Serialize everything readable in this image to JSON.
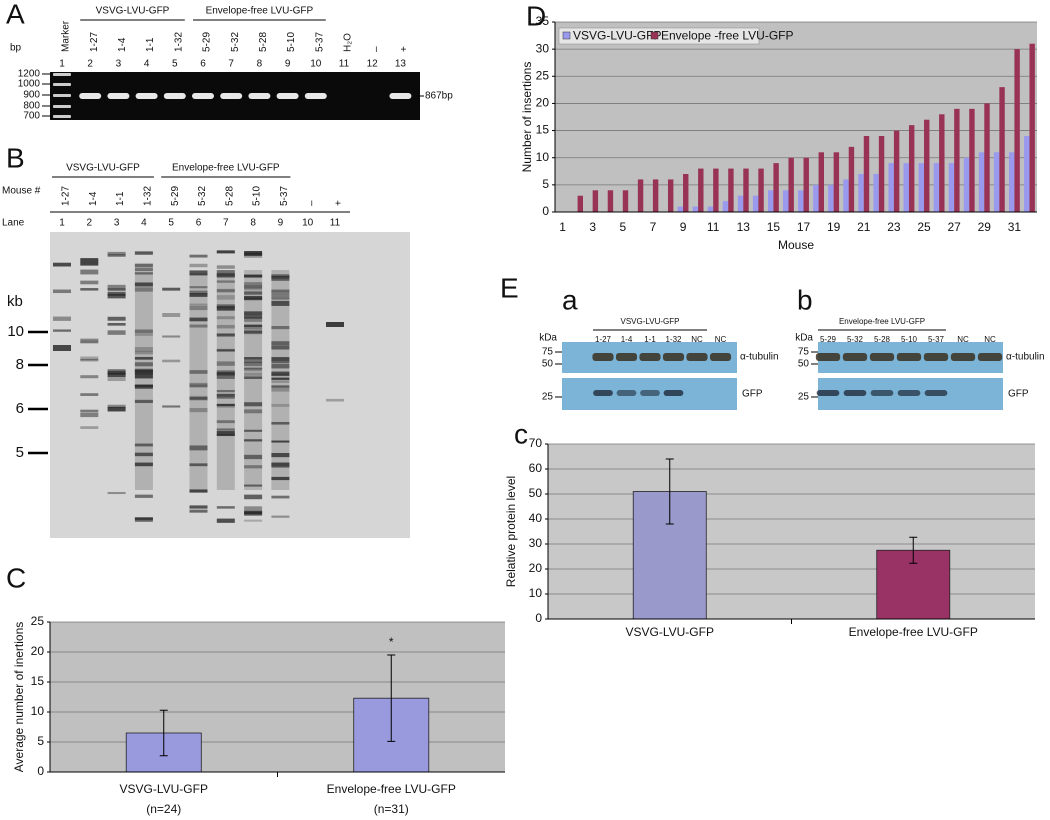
{
  "panels": {
    "A": {
      "label": "A",
      "groups": [
        "VSVG-LVU-GFP",
        "Envelope-free LVU-GFP"
      ],
      "lanes": [
        "Marker",
        "1-27",
        "1-4",
        "1-1",
        "1-32",
        "5-29",
        "5-32",
        "5-28",
        "5-10",
        "5-37",
        "H₂O",
        "–",
        "+"
      ],
      "lane_numbers": [
        "1",
        "2",
        "3",
        "4",
        "5",
        "6",
        "7",
        "8",
        "9",
        "10",
        "11",
        "12",
        "13"
      ],
      "size_unit": "bp",
      "ladder": [
        "1200",
        "1000",
        "900",
        "800",
        "700"
      ],
      "band_label": "867bp"
    },
    "B": {
      "label": "B",
      "groups": [
        "VSVG-LVU-GFP",
        "Envelope-free LVU-GFP"
      ],
      "row_labels": [
        "Mouse #",
        "Lane"
      ],
      "lanes": [
        "1-27",
        "1-4",
        "1-1",
        "1-32",
        "5-29",
        "5-32",
        "5-28",
        "5-10",
        "5-37",
        "–",
        "+"
      ],
      "lane_numbers": [
        "1",
        "2",
        "3",
        "4",
        "5",
        "6",
        "7",
        "8",
        "9",
        "10",
        "11"
      ],
      "size_unit": "kb",
      "ladder": [
        "10",
        "8",
        "6",
        "5"
      ]
    },
    "E": {
      "label": "E",
      "blots": [
        {
          "label": "a",
          "group": "VSVG-LVU-GFP",
          "unit": "kDa",
          "markers": [
            "75",
            "50",
            "25"
          ],
          "lanes": [
            "1-27",
            "1-4",
            "1-1",
            "1-32",
            "NC",
            "NC"
          ],
          "bands": [
            "α-tubulin",
            "GFP"
          ]
        },
        {
          "label": "b",
          "group": "Envelope-free LVU-GFP",
          "unit": "kDa",
          "markers": [
            "75",
            "50",
            "25"
          ],
          "lanes": [
            "5-29",
            "5-32",
            "5-28",
            "5-10",
            "5-37",
            "NC",
            "NC"
          ],
          "bands": [
            "α-tubulin",
            "GFP"
          ]
        }
      ]
    }
  },
  "chart_data": [
    {
      "type": "bar",
      "panel_label": "C",
      "ylabel": "Average number of inertions",
      "categories": [
        "VSVG-LVU-GFP",
        "Envelope-free LVU-GFP"
      ],
      "category_sublabels": [
        "(n=24)",
        "(n=31)"
      ],
      "values": [
        6.5,
        12.3
      ],
      "errors": [
        3.8,
        7.2
      ],
      "color": "#9999dd",
      "annotation": "*",
      "ylim": [
        0,
        25
      ],
      "yticks": [
        0,
        5,
        10,
        15,
        20,
        25
      ],
      "grid": true,
      "background": "#c0c0c0"
    },
    {
      "type": "bar",
      "panel_label": "D",
      "ylabel": "Number of insertions",
      "xlabel": "Mouse",
      "categories": [
        1,
        null,
        3,
        null,
        5,
        null,
        7,
        null,
        9,
        null,
        11,
        null,
        13,
        null,
        15,
        null,
        17,
        null,
        19,
        null,
        21,
        null,
        23,
        null,
        25,
        null,
        27,
        null,
        29,
        null,
        31,
        null
      ],
      "series": [
        {
          "name": "VSVG-LVU-GFP",
          "color": "#9999ee",
          "values": [
            0,
            0,
            0,
            0,
            0,
            0,
            0,
            0,
            1,
            1,
            1,
            2,
            3,
            3,
            4,
            4,
            4,
            5,
            5,
            6,
            7,
            7,
            9,
            9,
            9,
            9,
            9,
            10,
            11,
            11,
            11,
            14
          ]
        },
        {
          "name": "Envelope -free LVU-GFP",
          "color": "#993355",
          "values": [
            0,
            3,
            4,
            4,
            4,
            6,
            6,
            6,
            7,
            8,
            8,
            8,
            8,
            8,
            9,
            10,
            10,
            11,
            11,
            12,
            14,
            14,
            15,
            16,
            17,
            18,
            19,
            19,
            20,
            23,
            30,
            31
          ]
        }
      ],
      "legend": "upper left",
      "ylim": [
        0,
        35
      ],
      "yticks": [
        0,
        5,
        10,
        15,
        20,
        25,
        30,
        35
      ],
      "grid": true,
      "background": "#c0c0c0"
    },
    {
      "type": "bar",
      "panel_label": "c",
      "ylabel": "Relative protein level",
      "categories": [
        "VSVG-LVU-GFP",
        "Envelope-free LVU-GFP"
      ],
      "values": [
        51,
        27.5
      ],
      "errors": [
        13,
        5.2
      ],
      "colors": [
        "#9999cc",
        "#993366"
      ],
      "ylim": [
        0,
        70
      ],
      "yticks": [
        0,
        10,
        20,
        30,
        40,
        50,
        60,
        70
      ],
      "grid": true,
      "background": "#c8c8c8"
    }
  ]
}
